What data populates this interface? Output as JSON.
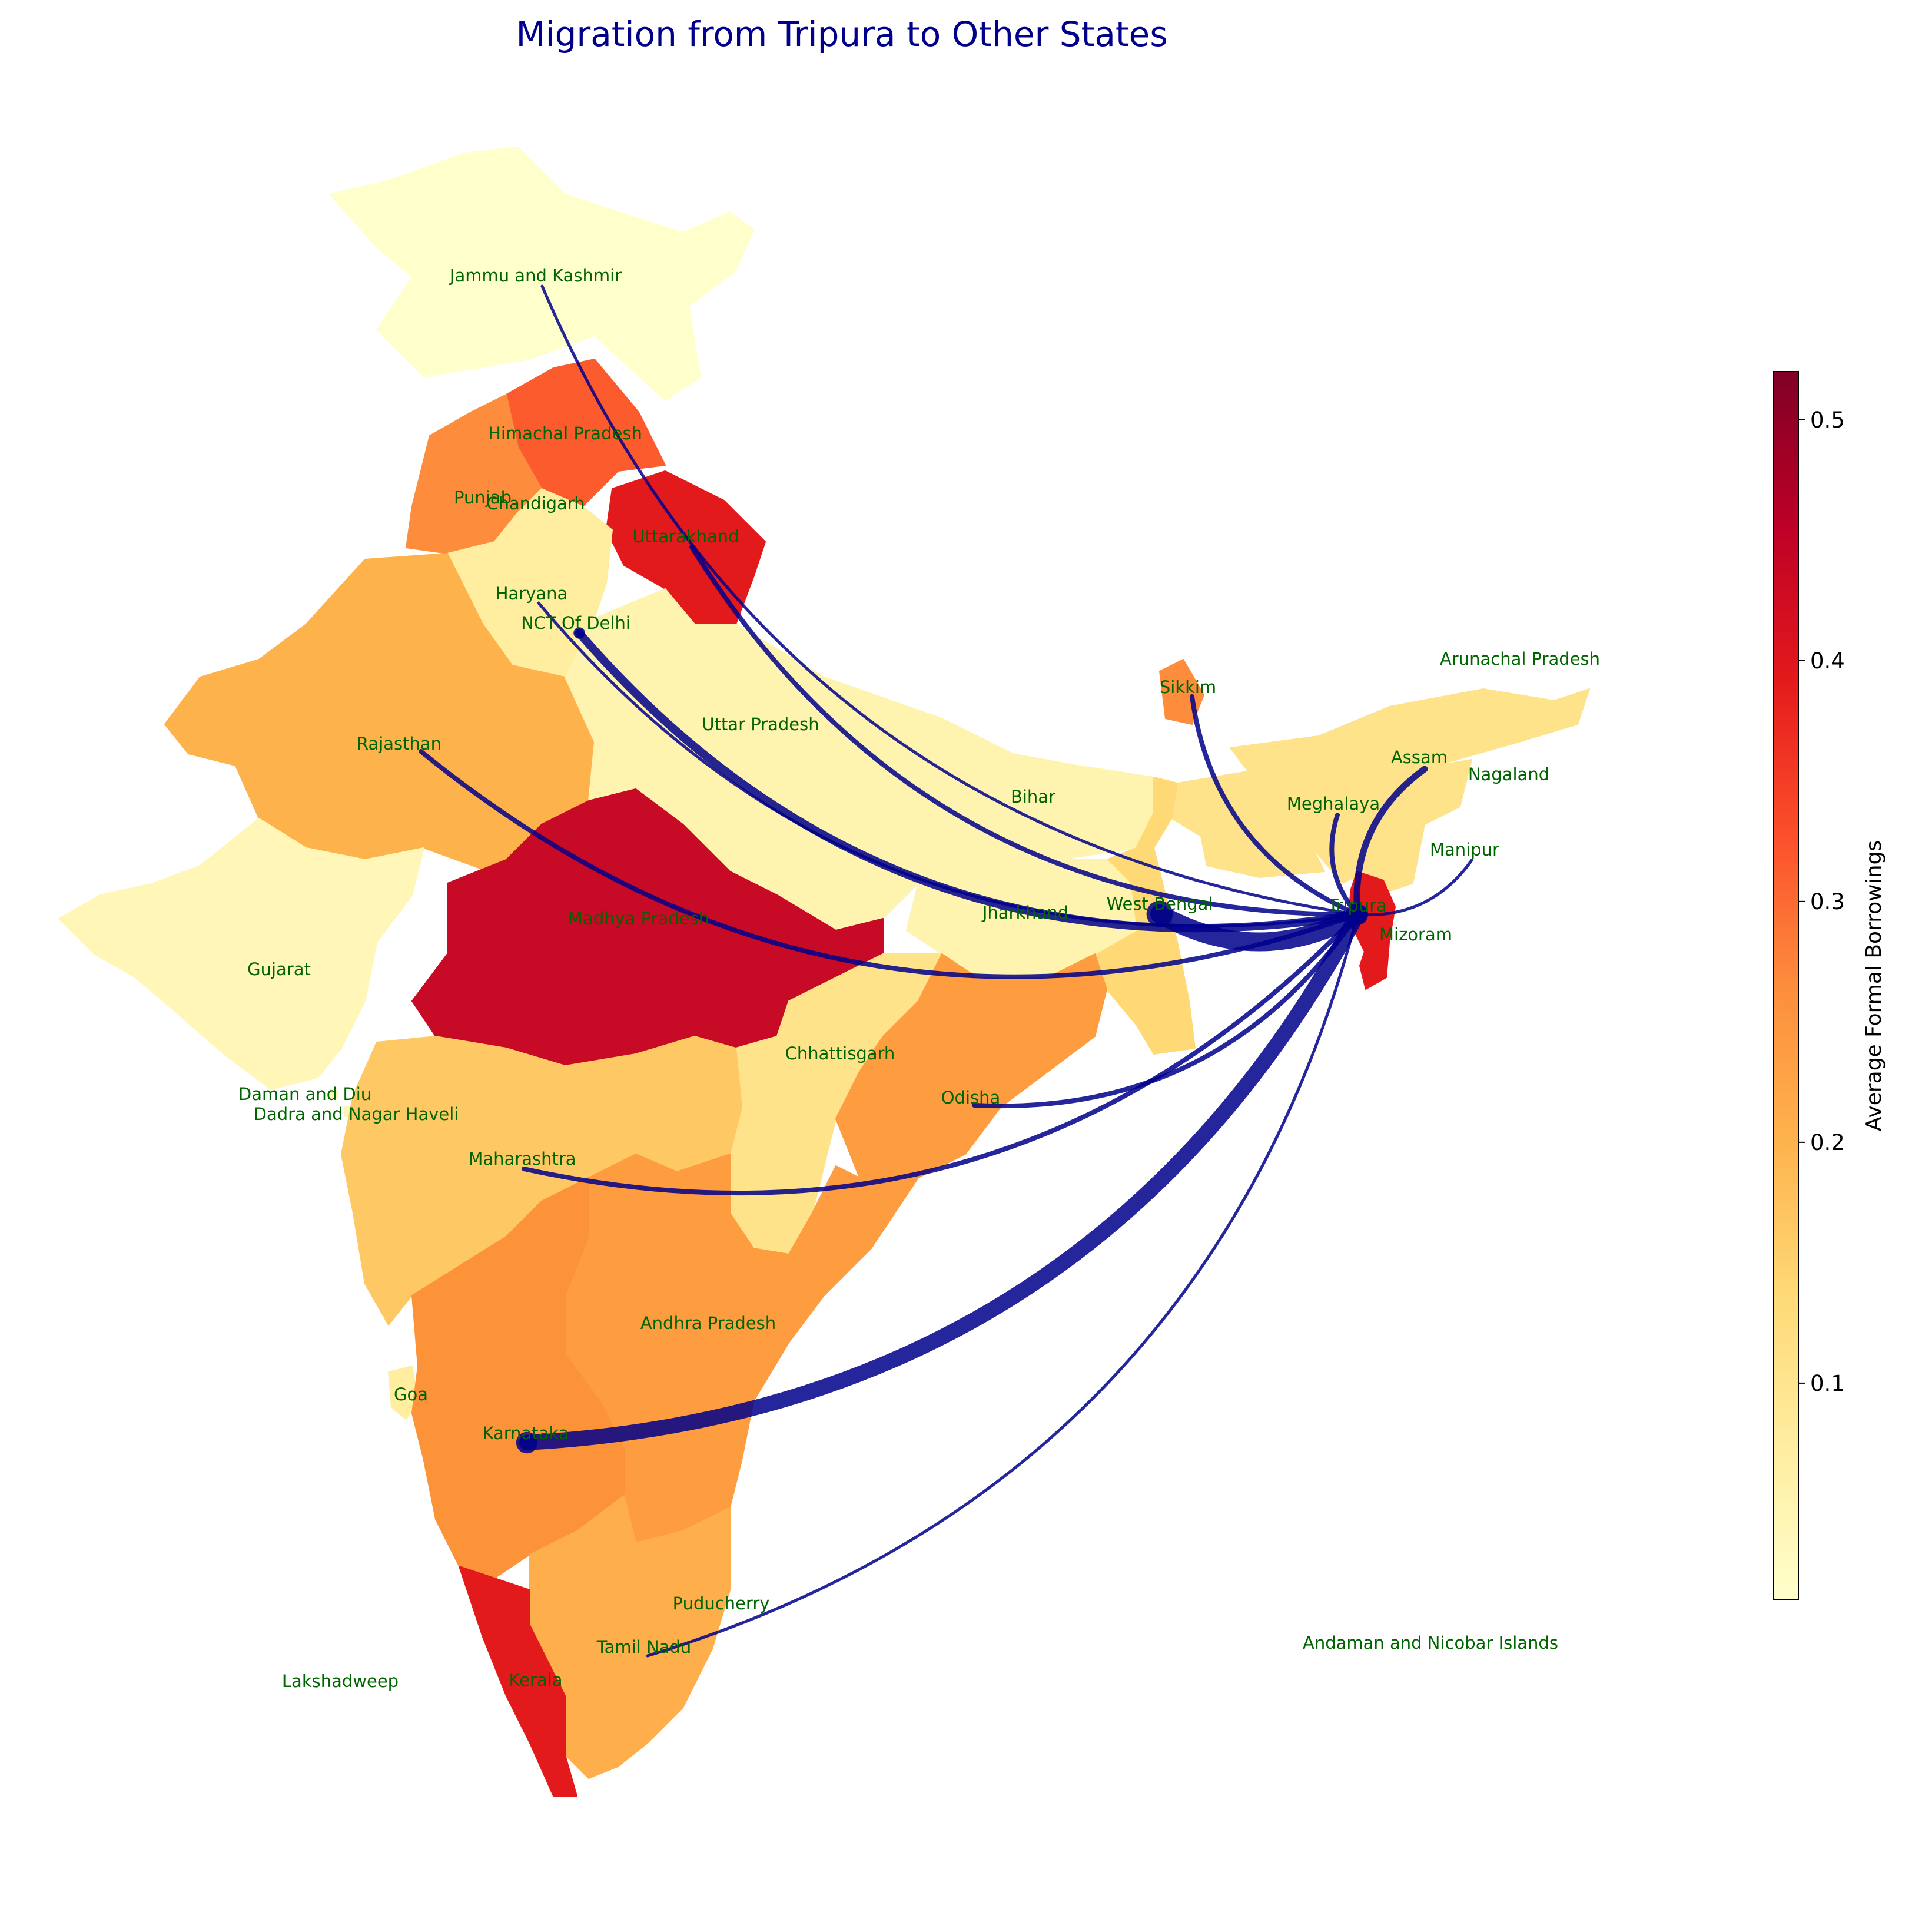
{
  "title": "Migration from Tripura to Other States",
  "colorbar": {
    "label": "Average Formal Borrowings",
    "ticks": [
      "0.1",
      "0.2",
      "0.3",
      "0.4",
      "0.5"
    ],
    "colormap": [
      "#ffffcc",
      "#ffeda0",
      "#fed976",
      "#feb24c",
      "#fd8d3c",
      "#fc4e2a",
      "#e31a1c",
      "#bd0026",
      "#800026"
    ]
  },
  "flow_color": "#00008b",
  "origin": "Tripura",
  "states": [
    {
      "name": "Jammu and Kashmir",
      "fill": "#ffffcc"
    },
    {
      "name": "Himachal Pradesh",
      "fill": "#fc5b2e"
    },
    {
      "name": "Punjab",
      "fill": "#fd8d3c"
    },
    {
      "name": "Chandigarh",
      "fill": "#fd8d3c"
    },
    {
      "name": "Uttarakhand",
      "fill": "#e31a1c"
    },
    {
      "name": "Haryana",
      "fill": "#ffeda0"
    },
    {
      "name": "NCT Of Delhi",
      "fill": "#ffeda0"
    },
    {
      "name": "Rajasthan",
      "fill": "#feb24c"
    },
    {
      "name": "Uttar Pradesh",
      "fill": "#fff3b0"
    },
    {
      "name": "Bihar",
      "fill": "#fff3b0"
    },
    {
      "name": "Sikkim",
      "fill": "#fd8d3c"
    },
    {
      "name": "Arunachal Pradesh",
      "fill": "#fee38a"
    },
    {
      "name": "Assam",
      "fill": "#fee38a"
    },
    {
      "name": "Nagaland",
      "fill": "#fee38a"
    },
    {
      "name": "Meghalaya",
      "fill": "#fee38a"
    },
    {
      "name": "Manipur",
      "fill": "#fee38a"
    },
    {
      "name": "Tripura",
      "fill": "#e31a1c"
    },
    {
      "name": "Mizoram",
      "fill": "#e31a1c"
    },
    {
      "name": "West Bengal",
      "fill": "#fed976"
    },
    {
      "name": "Jharkhand",
      "fill": "#fff3b0"
    },
    {
      "name": "Madhya Pradesh",
      "fill": "#c70a26"
    },
    {
      "name": "Gujarat",
      "fill": "#fff6b8"
    },
    {
      "name": "Daman and Diu",
      "fill": "#fff6b8"
    },
    {
      "name": "Dadra and Nagar Haveli",
      "fill": "#fff6b8"
    },
    {
      "name": "Chhattisgarh",
      "fill": "#fee38a"
    },
    {
      "name": "Odisha",
      "fill": "#fd9d40"
    },
    {
      "name": "Maharashtra",
      "fill": "#fec965"
    },
    {
      "name": "Andhra Pradesh",
      "fill": "#fd9d40"
    },
    {
      "name": "Goa",
      "fill": "#ffeda0"
    },
    {
      "name": "Karnataka",
      "fill": "#fd9339"
    },
    {
      "name": "Puducherry",
      "fill": "#fd8d3c"
    },
    {
      "name": "Tamil Nadu",
      "fill": "#feae4a"
    },
    {
      "name": "Kerala",
      "fill": "#e31a1c"
    },
    {
      "name": "Lakshadweep",
      "fill": "#ffffcc"
    },
    {
      "name": "Andaman and Nicobar Islands",
      "fill": "#ffffcc"
    }
  ],
  "flows": [
    {
      "to": "Jammu and Kashmir",
      "weight": 1
    },
    {
      "to": "Uttarakhand",
      "weight": 2
    },
    {
      "to": "Haryana",
      "weight": 1
    },
    {
      "to": "NCT Of Delhi",
      "weight": 4
    },
    {
      "to": "Rajasthan",
      "weight": 2
    },
    {
      "to": "Sikkim",
      "weight": 2
    },
    {
      "to": "Assam",
      "weight": 3
    },
    {
      "to": "Meghalaya",
      "weight": 2
    },
    {
      "to": "Manipur",
      "weight": 1
    },
    {
      "to": "West Bengal",
      "weight": 10
    },
    {
      "to": "Maharashtra",
      "weight": 2
    },
    {
      "to": "Odisha",
      "weight": 2
    },
    {
      "to": "Karnataka",
      "weight": 8
    },
    {
      "to": "Tamil Nadu",
      "weight": 1
    }
  ]
}
